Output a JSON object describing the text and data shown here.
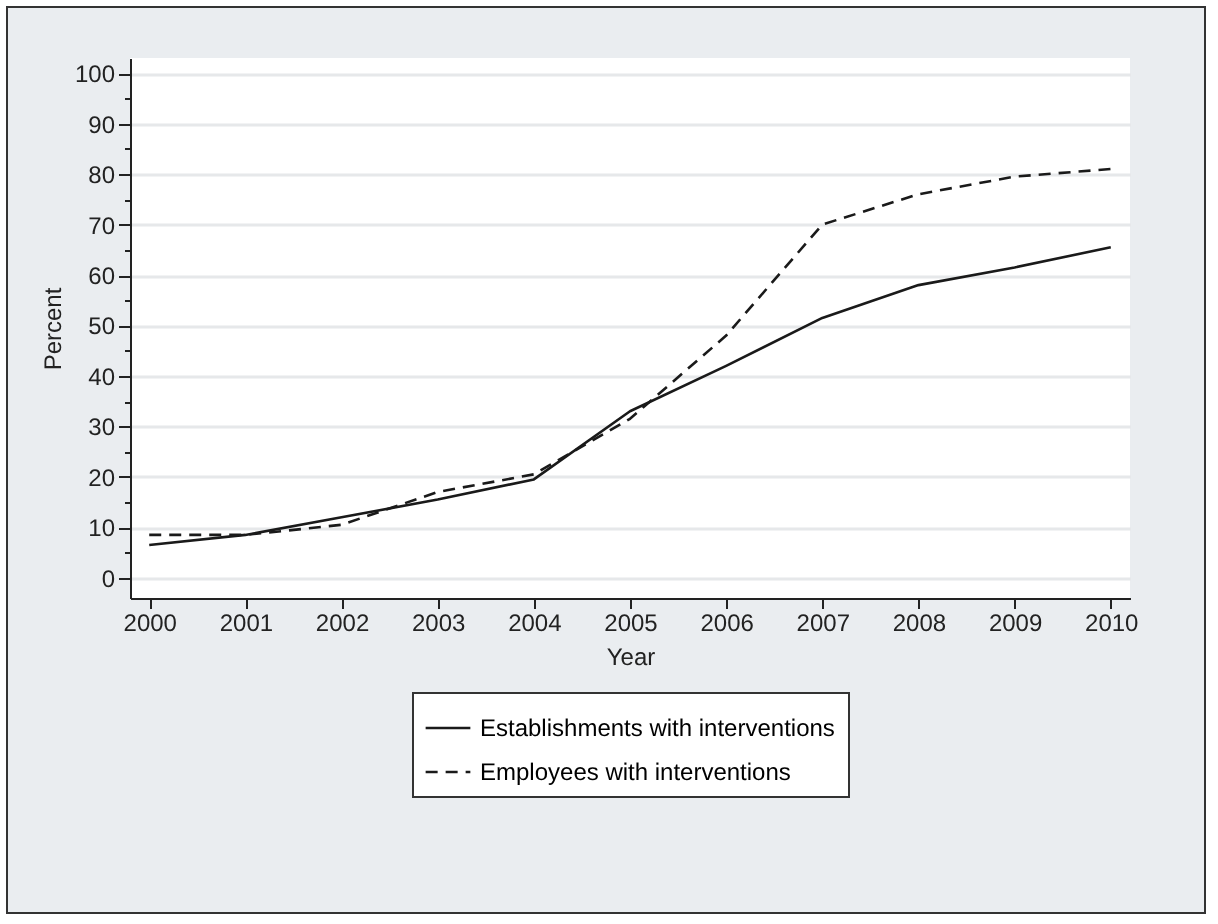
{
  "chart_data": {
    "type": "line",
    "xlabel": "Year",
    "ylabel": "Percent",
    "x": [
      2000,
      2001,
      2002,
      2003,
      2004,
      2005,
      2006,
      2007,
      2008,
      2009,
      2010
    ],
    "series": [
      {
        "name": "Establishments with interventions",
        "color": "#1a1a1a",
        "line_style": "solid",
        "values": [
          6.5,
          8.5,
          12,
          15.5,
          19.5,
          33,
          42,
          51.5,
          58,
          61.5,
          65.5
        ]
      },
      {
        "name": "Employees with interventions",
        "color": "#1a1a1a",
        "line_style": "dashed",
        "values": [
          8.5,
          8.5,
          10.5,
          17,
          20.5,
          31.5,
          48,
          70,
          76,
          79.5,
          81
        ]
      }
    ],
    "xlim": [
      1999.8,
      2010.2
    ],
    "ylim": [
      -4,
      103
    ],
    "xticks": [
      2000,
      2001,
      2002,
      2003,
      2004,
      2005,
      2006,
      2007,
      2008,
      2009,
      2010
    ],
    "yticks": [
      0,
      {
        "value": 5,
        "label": null
      },
      10,
      {
        "value": 15,
        "label": null
      },
      20,
      {
        "value": 25,
        "label": null
      },
      30,
      {
        "value": 35,
        "label": null
      },
      40,
      {
        "value": 45,
        "label": null
      },
      50,
      {
        "value": 55,
        "label": null
      },
      60,
      {
        "value": 65,
        "label": null
      },
      70,
      {
        "value": 75,
        "label": null
      },
      80,
      {
        "value": 85,
        "label": null
      },
      90,
      {
        "value": 95,
        "label": null
      },
      100
    ],
    "grid": "y",
    "legend": "bottom",
    "marker": "none"
  }
}
